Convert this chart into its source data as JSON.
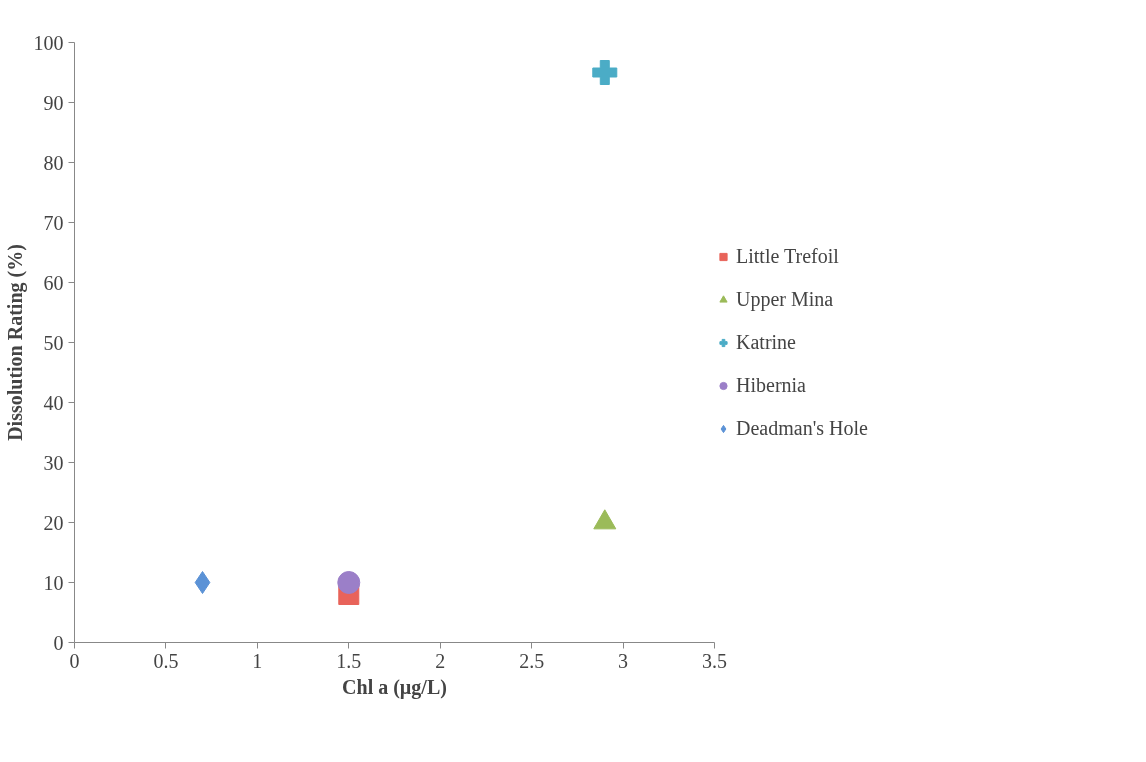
{
  "chart_data": {
    "type": "scatter",
    "xlabel": "Chl a (µg/L)",
    "ylabel": "Dissolution Rating (%)",
    "xlim": [
      0,
      3.5
    ],
    "xticks": [
      0,
      0.5,
      1,
      1.5,
      2,
      2.5,
      3,
      3.5
    ],
    "ylim": [
      0,
      100
    ],
    "yticks": [
      0,
      10,
      20,
      30,
      40,
      50,
      60,
      70,
      80,
      90,
      100
    ],
    "grid": false,
    "legend": "right",
    "series": [
      {
        "name": "Little Trefoil",
        "color": "#e8635a",
        "marker": "square",
        "x": [
          1.5
        ],
        "values": [
          8
        ]
      },
      {
        "name": "Upper Mina",
        "color": "#9bbb59",
        "marker": "triangle",
        "x": [
          2.9
        ],
        "values": [
          20
        ]
      },
      {
        "name": "Katrine",
        "color": "#4bacc6",
        "marker": "cross",
        "x": [
          2.9
        ],
        "values": [
          95
        ]
      },
      {
        "name": "Hibernia",
        "color": "#9b7fc8",
        "marker": "circle",
        "x": [
          1.5
        ],
        "values": [
          10
        ]
      },
      {
        "name": "Deadman's Hole",
        "color": "#5b92d6",
        "marker": "diamond",
        "x": [
          0.7
        ],
        "values": [
          10
        ]
      }
    ]
  }
}
